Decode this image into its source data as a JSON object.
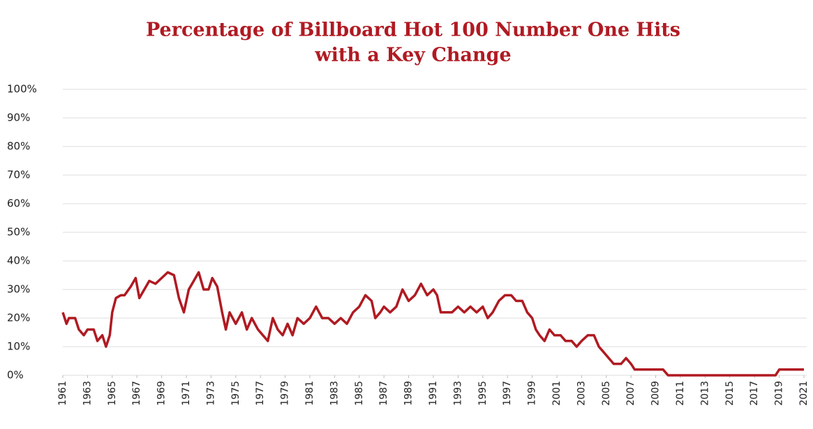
{
  "chart_data": {
    "type": "line",
    "title": [
      "Percentage of Billboard Hot 100 Number One Hits",
      "with a Key Change"
    ],
    "color": "#b01a22",
    "x": [
      1961.0,
      1961.3,
      1961.5,
      1962.0,
      1962.3,
      1962.7,
      1963.0,
      1963.5,
      1963.8,
      1964.2,
      1964.5,
      1964.8,
      1965.0,
      1965.3,
      1965.7,
      1966.0,
      1966.5,
      1966.9,
      1967.2,
      1967.6,
      1968.0,
      1968.5,
      1969.0,
      1969.5,
      1970.0,
      1970.4,
      1970.8,
      1971.2,
      1971.6,
      1972.0,
      1972.4,
      1972.8,
      1973.1,
      1973.5,
      1973.9,
      1974.2,
      1974.5,
      1975.0,
      1975.5,
      1975.9,
      1976.3,
      1976.8,
      1977.2,
      1977.6,
      1978.0,
      1978.4,
      1978.8,
      1979.2,
      1979.6,
      1980.0,
      1980.5,
      1981.0,
      1981.5,
      1982.0,
      1982.5,
      1983.0,
      1983.5,
      1984.0,
      1984.5,
      1985.0,
      1985.5,
      1986.0,
      1986.3,
      1986.7,
      1987.0,
      1987.5,
      1988.0,
      1988.5,
      1989.0,
      1989.5,
      1990.0,
      1990.5,
      1991.0,
      1991.3,
      1991.6,
      1992.0,
      1992.5,
      1993.0,
      1993.5,
      1994.0,
      1994.5,
      1995.0,
      1995.4,
      1995.8,
      1996.3,
      1996.8,
      1997.3,
      1997.7,
      1998.2,
      1998.6,
      1999.0,
      1999.3,
      1999.6,
      2000.0,
      2000.4,
      2000.8,
      2001.3,
      2001.7,
      2002.2,
      2002.6,
      2003.0,
      2003.5,
      2004.0,
      2004.4,
      2004.8,
      2005.2,
      2005.6,
      2006.2,
      2006.6,
      2007.0,
      2007.3,
      2008.0,
      2009.0,
      2009.6,
      2010.0,
      2012.0,
      2015.0,
      2018.0,
      2018.7,
      2019.0,
      2021.0
    ],
    "values": [
      22,
      18,
      20,
      20,
      16,
      14,
      16,
      16,
      12,
      14,
      10,
      14,
      22,
      27,
      28,
      28,
      31,
      34,
      27,
      30,
      33,
      32,
      34,
      36,
      35,
      27,
      22,
      30,
      33,
      36,
      30,
      30,
      34,
      31,
      22,
      16,
      22,
      18,
      22,
      16,
      20,
      16,
      14,
      12,
      20,
      16,
      14,
      18,
      14,
      20,
      18,
      20,
      24,
      20,
      20,
      18,
      20,
      18,
      22,
      24,
      28,
      26,
      20,
      22,
      24,
      22,
      24,
      30,
      26,
      28,
      32,
      28,
      30,
      28,
      22,
      22,
      22,
      24,
      22,
      24,
      22,
      24,
      20,
      22,
      26,
      28,
      28,
      26,
      26,
      22,
      20,
      16,
      14,
      12,
      16,
      14,
      14,
      12,
      12,
      10,
      12,
      14,
      14,
      10,
      8,
      6,
      4,
      4,
      6,
      4,
      2,
      2,
      2,
      2,
      0,
      0,
      0,
      0,
      0,
      2,
      2
    ],
    "xlim": [
      1961,
      2021
    ],
    "xticks": [
      1961,
      1963,
      1965,
      1967,
      1969,
      1971,
      1973,
      1975,
      1977,
      1979,
      1981,
      1983,
      1985,
      1987,
      1989,
      1991,
      1993,
      1995,
      1997,
      1999,
      2001,
      2003,
      2005,
      2007,
      2009,
      2011,
      2013,
      2015,
      2017,
      2019,
      2021
    ],
    "ylim": [
      0,
      100
    ],
    "yticks": [
      {
        "value": 0,
        "label": "0%"
      },
      {
        "value": 10,
        "label": "10%"
      },
      {
        "value": 20,
        "label": "20%"
      },
      {
        "value": 30,
        "label": "30%"
      },
      {
        "value": 40,
        "label": "40%"
      },
      {
        "value": 50,
        "label": "50%"
      },
      {
        "value": 60,
        "label": "60%"
      },
      {
        "value": 70,
        "label": "70%"
      },
      {
        "value": 80,
        "label": "80%"
      },
      {
        "value": 90,
        "label": "90%"
      },
      {
        "value": 100,
        "label": "100%"
      }
    ],
    "grid": true
  }
}
